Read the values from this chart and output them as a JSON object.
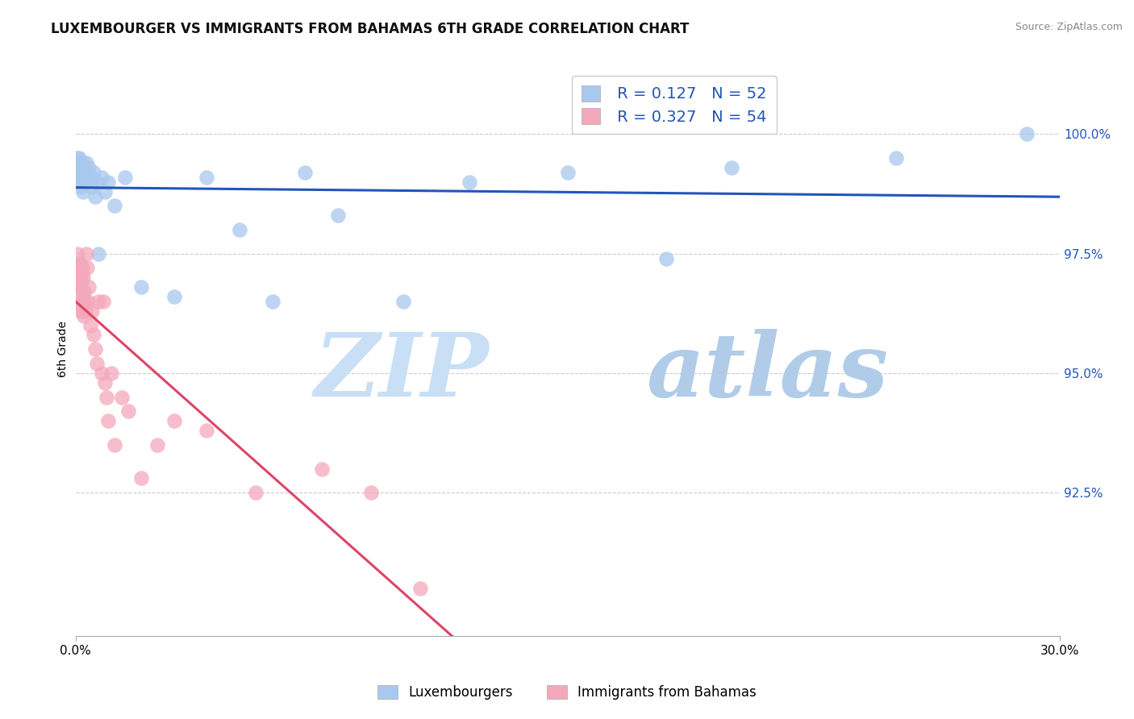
{
  "title": "LUXEMBOURGER VS IMMIGRANTS FROM BAHAMAS 6TH GRADE CORRELATION CHART",
  "source": "Source: ZipAtlas.com",
  "ylabel": "6th Grade",
  "xlim": [
    0.0,
    30.0
  ],
  "ylim": [
    89.5,
    101.5
  ],
  "yticks": [
    92.5,
    95.0,
    97.5,
    100.0
  ],
  "ytick_labels": [
    "92.5%",
    "95.0%",
    "97.5%",
    "100.0%"
  ],
  "blue_label": "Luxembourgers",
  "pink_label": "Immigrants from Bahamas",
  "blue_R": "0.127",
  "blue_N": "52",
  "pink_R": "0.327",
  "pink_N": "54",
  "blue_color": "#a8c8ee",
  "pink_color": "#f4a8bc",
  "blue_line_color": "#2255bb",
  "pink_line_color": "#dd4466",
  "blue_x": [
    0.05,
    0.07,
    0.08,
    0.09,
    0.1,
    0.11,
    0.12,
    0.13,
    0.14,
    0.15,
    0.16,
    0.17,
    0.18,
    0.19,
    0.2,
    0.21,
    0.22,
    0.23,
    0.24,
    0.25,
    0.26,
    0.28,
    0.3,
    0.32,
    0.35,
    0.38,
    0.4,
    0.45,
    0.5,
    0.55,
    0.6,
    0.65,
    0.7,
    0.8,
    0.9,
    1.0,
    1.2,
    1.5,
    2.0,
    3.0,
    4.0,
    5.0,
    6.0,
    7.0,
    8.0,
    10.0,
    12.0,
    15.0,
    18.0,
    20.0,
    25.0,
    29.0
  ],
  "blue_y": [
    99.5,
    99.3,
    99.2,
    99.4,
    99.1,
    99.5,
    99.3,
    99.0,
    99.4,
    99.2,
    98.9,
    99.3,
    99.1,
    99.0,
    99.3,
    99.2,
    99.4,
    99.1,
    98.8,
    99.2,
    99.0,
    99.3,
    99.1,
    99.4,
    99.2,
    99.0,
    99.3,
    99.1,
    98.9,
    99.2,
    98.7,
    99.0,
    97.5,
    99.1,
    98.8,
    99.0,
    98.5,
    99.1,
    96.8,
    96.6,
    99.1,
    98.0,
    96.5,
    99.2,
    98.3,
    96.5,
    99.0,
    99.2,
    97.4,
    99.3,
    99.5,
    100.0
  ],
  "pink_x": [
    0.04,
    0.05,
    0.06,
    0.07,
    0.08,
    0.09,
    0.09,
    0.1,
    0.11,
    0.12,
    0.13,
    0.14,
    0.15,
    0.16,
    0.16,
    0.17,
    0.18,
    0.19,
    0.2,
    0.21,
    0.22,
    0.23,
    0.24,
    0.25,
    0.26,
    0.28,
    0.3,
    0.32,
    0.35,
    0.38,
    0.4,
    0.45,
    0.5,
    0.55,
    0.6,
    0.65,
    0.7,
    0.8,
    0.85,
    0.9,
    0.95,
    1.0,
    1.1,
    1.2,
    1.4,
    1.6,
    2.0,
    2.5,
    3.0,
    4.0,
    5.5,
    7.5,
    9.0,
    10.5
  ],
  "pink_y": [
    97.2,
    97.0,
    97.5,
    96.8,
    97.3,
    97.1,
    96.5,
    97.2,
    97.0,
    96.8,
    97.3,
    97.1,
    96.5,
    97.0,
    96.3,
    96.8,
    97.1,
    96.9,
    97.2,
    96.7,
    97.0,
    96.5,
    96.3,
    96.7,
    96.2,
    96.5,
    96.3,
    97.5,
    97.2,
    96.5,
    96.8,
    96.0,
    96.3,
    95.8,
    95.5,
    95.2,
    96.5,
    95.0,
    96.5,
    94.8,
    94.5,
    94.0,
    95.0,
    93.5,
    94.5,
    94.2,
    92.8,
    93.5,
    94.0,
    93.8,
    92.5,
    93.0,
    92.5,
    90.5
  ],
  "watermark_zip": "ZIP",
  "watermark_atlas": "atlas",
  "background_color": "#ffffff",
  "legend_fontsize": 14,
  "title_fontsize": 12,
  "axis_label_fontsize": 10,
  "tick_fontsize": 11
}
